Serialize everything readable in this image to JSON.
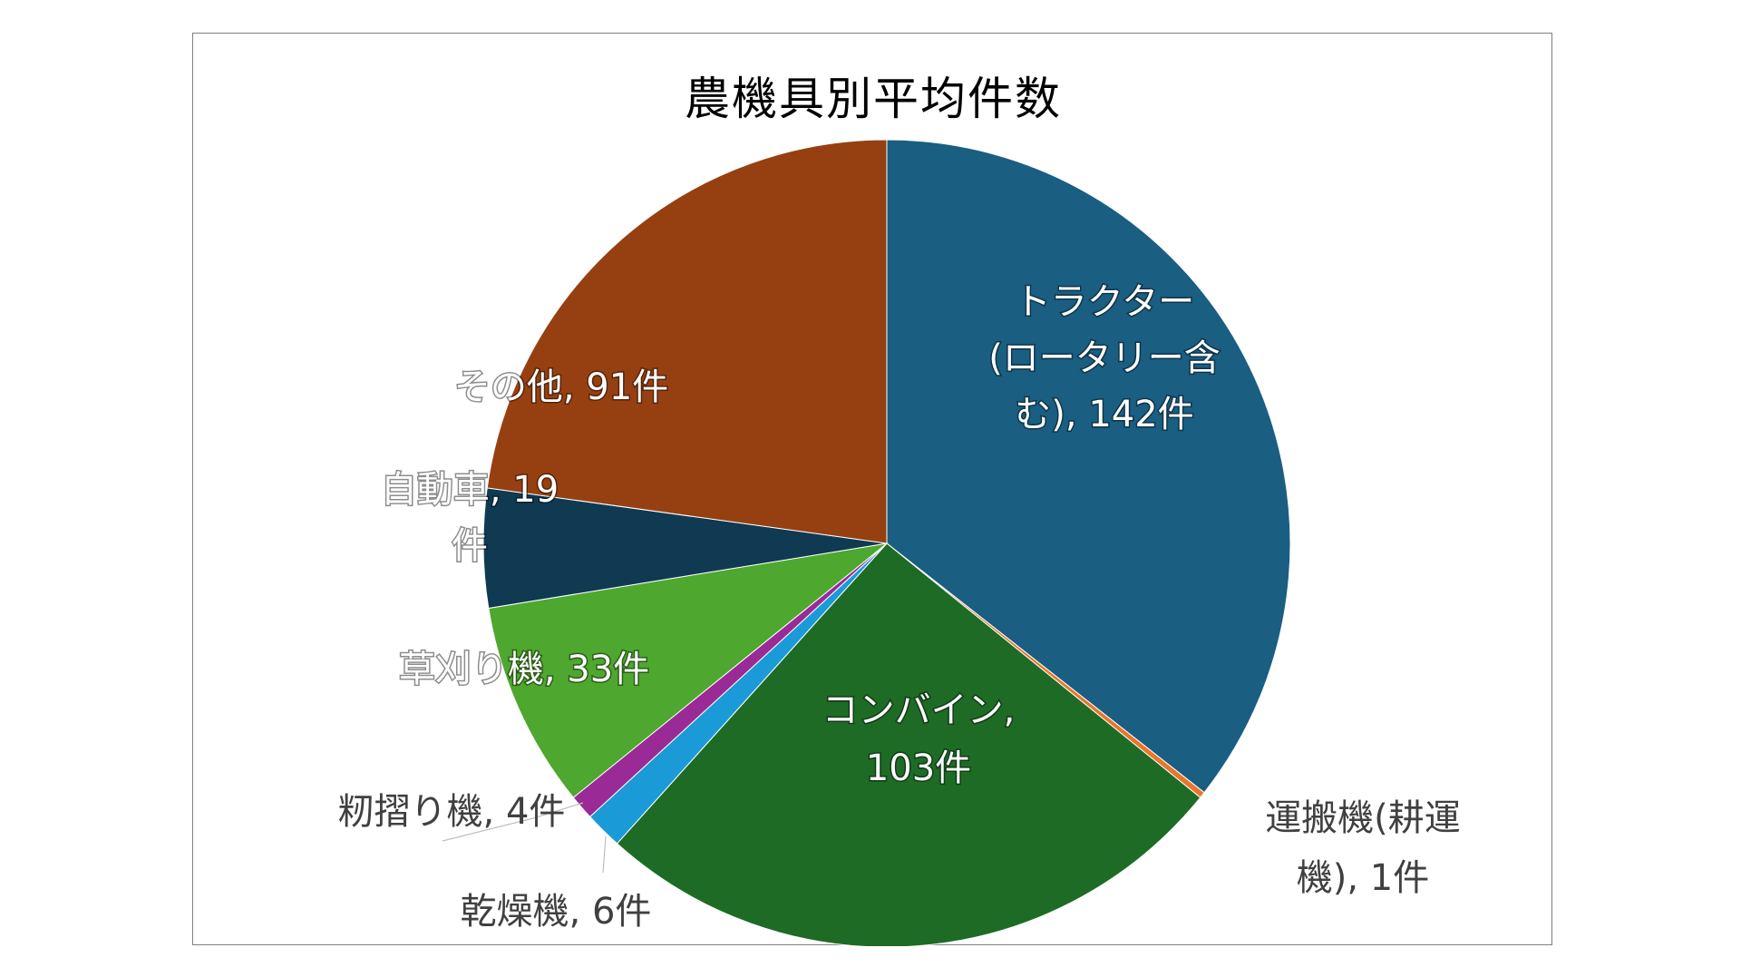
{
  "chart_data": {
    "type": "pie",
    "title": "農機具別平均件数",
    "slices": [
      {
        "name": "トラクター(ロータリー含む)",
        "value": 142,
        "unit": "件",
        "color": "#1a5e82",
        "label_lines": [
          "トラクター",
          "(ロータリー含",
          "む), 142件"
        ]
      },
      {
        "name": "運搬機(耕運機)",
        "value": 1,
        "unit": "件",
        "color": "#e8762b",
        "label_lines": [
          "運搬機(耕運",
          "機), 1件"
        ]
      },
      {
        "name": "コンバイン",
        "value": 103,
        "unit": "件",
        "color": "#1e6b26",
        "label_lines": [
          "コンバイン,",
          "103件"
        ]
      },
      {
        "name": "乾燥機",
        "value": 6,
        "unit": "件",
        "color": "#1a9bd7",
        "label_lines": [
          "乾燥機, 6件"
        ]
      },
      {
        "name": "籾摺り機",
        "value": 4,
        "unit": "件",
        "color": "#9a2b96",
        "label_lines": [
          "籾摺り機, 4件"
        ]
      },
      {
        "name": "草刈り機",
        "value": 33,
        "unit": "件",
        "color": "#4ea72e",
        "label_lines": [
          "草刈り機, 33件"
        ]
      },
      {
        "name": "自動車",
        "value": 19,
        "unit": "件",
        "color": "#0f3a52",
        "label_lines": [
          "自動車, 19",
          "件"
        ]
      },
      {
        "name": "その他",
        "value": 91,
        "unit": "件",
        "color": "#964012",
        "label_lines": [
          "その他, 91件"
        ]
      }
    ]
  }
}
